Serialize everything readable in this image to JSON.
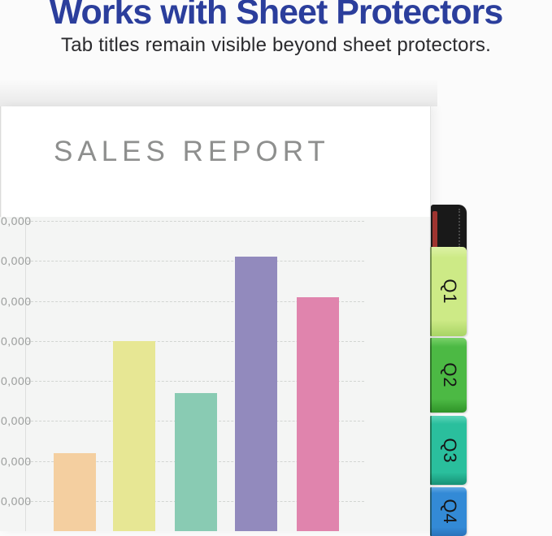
{
  "header": {
    "title": "Works with Sheet Protectors",
    "subtitle": "Tab titles remain visible beyond sheet protectors.",
    "title_color": "#2b3e9c"
  },
  "page": {
    "report_title": "SALES REPORT"
  },
  "binder": {
    "spine_color": "#191919",
    "spine_accent_color": "#9e3430",
    "tabs": [
      {
        "label": "Q1",
        "color": "#cdea86",
        "gradient_top": "#ddf2a6",
        "gradient_bottom": "#a8d465"
      },
      {
        "label": "Q2",
        "color": "#4cb944",
        "gradient_top": "#79d168",
        "gradient_bottom": "#2f9328"
      },
      {
        "label": "Q3",
        "color": "#2abf9d",
        "gradient_top": "#5cd4b9",
        "gradient_bottom": "#179176"
      },
      {
        "label": "Q4",
        "color": "#338ad6",
        "gradient_top": "#62a9e4",
        "gradient_bottom": "#2a72ba"
      }
    ]
  },
  "chart_data": {
    "type": "bar",
    "title": "SALES REPORT",
    "categories": [
      "",
      "",
      "",
      "",
      ""
    ],
    "values": [
      22000,
      50000,
      37000,
      71000,
      61000
    ],
    "bar_colors": [
      "#f4cfa0",
      "#e7e794",
      "#89cbb3",
      "#928abd",
      "#e084ad"
    ],
    "xlabel": "",
    "ylabel": "",
    "ylim": [
      0,
      85000
    ],
    "grid": true,
    "legend": false,
    "gridlines": [
      {
        "value": 80000,
        "label": "0,000"
      },
      {
        "value": 70000,
        "label": "0,000"
      },
      {
        "value": 60000,
        "label": "0,000"
      },
      {
        "value": 50000,
        "label": "0,000"
      },
      {
        "value": 40000,
        "label": "0,000"
      },
      {
        "value": 30000,
        "label": "0,000"
      },
      {
        "value": 20000,
        "label": "0,000"
      },
      {
        "value": 10000,
        "label": "0,000"
      }
    ],
    "tick_label_note": "y-axis tick labels are cropped at the left image edge; only '0,000' is visible on each gridline; x-axis labels are cropped below the image"
  }
}
